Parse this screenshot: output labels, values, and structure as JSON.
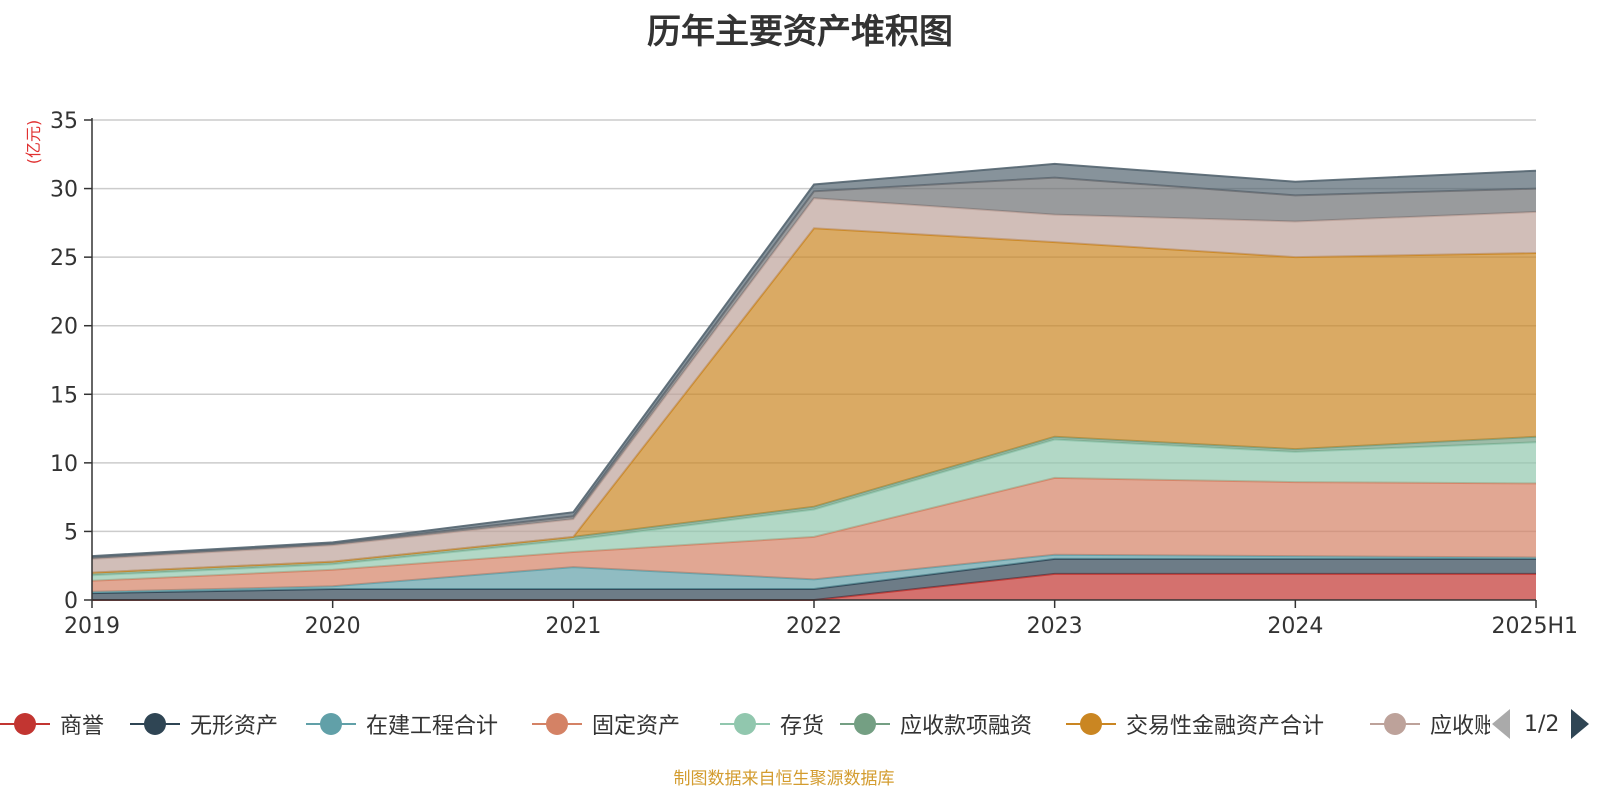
{
  "chart_data": {
    "type": "area",
    "stacked": true,
    "title": "历年主要资产堆积图",
    "ylabel": "(亿元)",
    "xlabel": "",
    "categories": [
      "2019",
      "2020",
      "2021",
      "2022",
      "2023",
      "2024",
      "2025H1"
    ],
    "ylim": [
      0,
      35
    ],
    "yticks": [
      0,
      5,
      10,
      15,
      20,
      25,
      30,
      35
    ],
    "grid": true,
    "legend_position": "bottom",
    "series": [
      {
        "name": "商誉",
        "color": "#c23531",
        "values": [
          0,
          0,
          0,
          0,
          1.9,
          1.9,
          1.9
        ]
      },
      {
        "name": "无形资产",
        "color": "#2f4554",
        "values": [
          0.5,
          0.8,
          0.8,
          0.8,
          1.1,
          1.1,
          1.1
        ]
      },
      {
        "name": "在建工程合计",
        "color": "#61a0a8",
        "values": [
          0.1,
          0.2,
          1.6,
          0.7,
          0.3,
          0.2,
          0.1
        ]
      },
      {
        "name": "固定资产",
        "color": "#d48265",
        "values": [
          0.8,
          1.2,
          1.1,
          3.1,
          5.6,
          5.4,
          5.4
        ]
      },
      {
        "name": "存货",
        "color": "#91c7ae",
        "values": [
          0.4,
          0.4,
          0.9,
          2.0,
          2.8,
          2.2,
          3.0
        ]
      },
      {
        "name": "应收款项融资",
        "color": "#749f83",
        "values": [
          0.2,
          0.2,
          0.2,
          0.2,
          0.2,
          0.2,
          0.4
        ]
      },
      {
        "name": "交易性金融资产合计",
        "color": "#ca8622",
        "values": [
          0,
          0,
          0,
          20.3,
          14.2,
          14.0,
          13.4
        ]
      },
      {
        "name": "应收账款",
        "color": "#bda29a",
        "values": [
          1.0,
          1.2,
          1.3,
          2.2,
          2.0,
          2.6,
          3.0
        ]
      },
      {
        "name": "",
        "color": "#6e7074",
        "values": [
          0.1,
          0.1,
          0.2,
          0.5,
          2.7,
          1.9,
          1.7
        ]
      },
      {
        "name": "",
        "color": "#546570",
        "values": [
          0.1,
          0.1,
          0.3,
          0.5,
          1.0,
          1.0,
          1.3
        ]
      }
    ]
  },
  "legend": {
    "visible_items": [
      "商誉",
      "无形资产",
      "在建工程合计",
      "固定资产",
      "存货",
      "应收款项融资",
      "交易性金融资产合计"
    ],
    "clipped_item": "应收账款",
    "page": "1/2"
  },
  "source_note": "制图数据来自恒生聚源数据库"
}
